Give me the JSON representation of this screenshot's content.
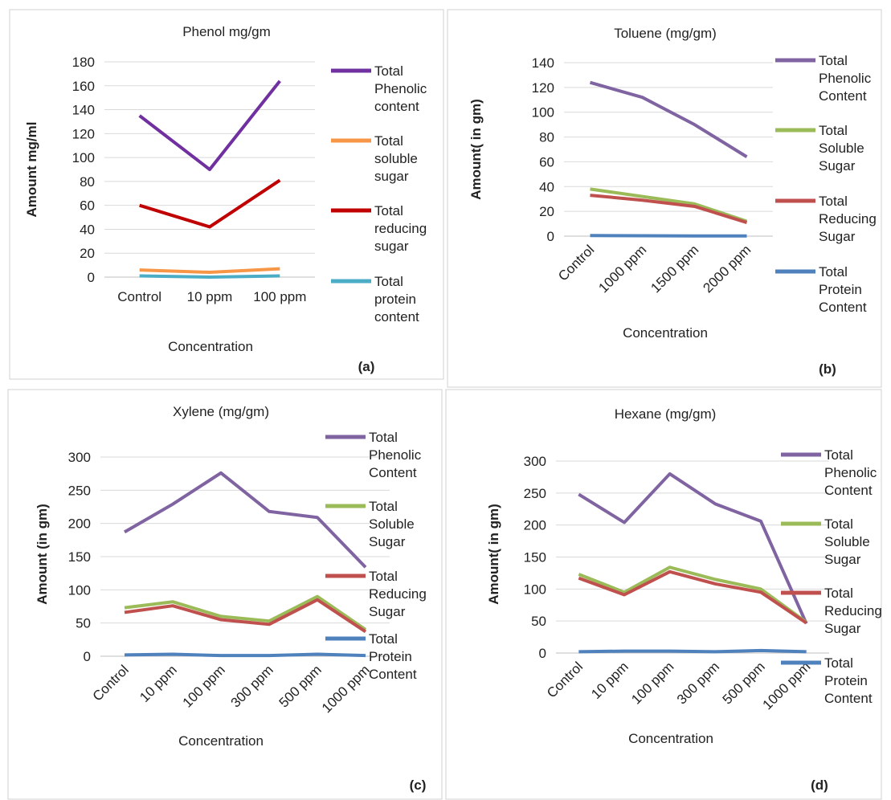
{
  "chart_data": [
    {
      "type": "line",
      "title": "Phenol mg/gm",
      "y_label": "Amount mg/ml",
      "x_label": "Concentration",
      "panel_label": "(a)",
      "categories": [
        "Control",
        "10 ppm",
        "100 ppm"
      ],
      "ylim": [
        0,
        180
      ],
      "yticks": [
        0,
        20,
        40,
        60,
        80,
        100,
        120,
        140,
        160,
        180
      ],
      "grid": true,
      "legend": "right",
      "series": [
        {
          "name": "Total Phenolic content",
          "color": "#7030a0",
          "values": [
            135,
            90,
            164
          ]
        },
        {
          "name": "Total soluble sugar",
          "color": "#f79646",
          "values": [
            6,
            4,
            7
          ]
        },
        {
          "name": "Total reducing sugar",
          "color": "#c00000",
          "values": [
            60,
            42,
            81
          ]
        },
        {
          "name": "Total protein content",
          "color": "#4bacc6",
          "values": [
            1,
            0,
            1
          ]
        }
      ]
    },
    {
      "type": "line",
      "title": "Toluene (mg/gm)",
      "y_label": "Amount( in gm)",
      "x_label": "Concentration",
      "panel_label": "(b)",
      "categories": [
        "Control",
        "1000 ppm",
        "1500 ppm",
        "2000 ppm"
      ],
      "ylim": [
        0,
        140
      ],
      "yticks": [
        0,
        20,
        40,
        60,
        80,
        100,
        120,
        140
      ],
      "grid": true,
      "legend": "right",
      "series": [
        {
          "name": "Total Phenolic Content",
          "color": "#8064a2",
          "values": [
            124,
            112,
            90,
            64
          ]
        },
        {
          "name": "Total Soluble Sugar",
          "color": "#9bbb59",
          "values": [
            38,
            32,
            26,
            12
          ]
        },
        {
          "name": "Total Reducing Sugar",
          "color": "#c0504d",
          "values": [
            33,
            29,
            24,
            11
          ]
        },
        {
          "name": "Total Protein Content",
          "color": "#4f81bd",
          "values": [
            0.5,
            0.3,
            0.2,
            0.2
          ]
        }
      ]
    },
    {
      "type": "line",
      "title": "Xylene (mg/gm)",
      "y_label": "Amount (in gm)",
      "x_label": "Concentration",
      "panel_label": "(c)",
      "categories": [
        "Control",
        "10 ppm",
        "100 ppm",
        "300 ppm",
        "500 ppm",
        "1000 ppm"
      ],
      "ylim": [
        0,
        300
      ],
      "yticks": [
        0,
        50,
        100,
        150,
        200,
        250,
        300
      ],
      "grid": true,
      "legend": "right",
      "series": [
        {
          "name": "Total Phenolic Content",
          "color": "#8064a2",
          "values": [
            187,
            229,
            276,
            218,
            209,
            134
          ]
        },
        {
          "name": "Total Soluble Sugar",
          "color": "#9bbb59",
          "values": [
            73,
            82,
            60,
            53,
            90,
            40
          ]
        },
        {
          "name": "Total Reducing Sugar",
          "color": "#c0504d",
          "values": [
            66,
            76,
            55,
            48,
            85,
            37
          ]
        },
        {
          "name": "Total Protein Content",
          "color": "#4f81bd",
          "values": [
            2,
            3,
            1,
            1,
            3,
            1
          ]
        }
      ]
    },
    {
      "type": "line",
      "title": "Hexane (mg/gm)",
      "y_label": "Amount( in gm)",
      "x_label": "Concentration",
      "panel_label": "(d)",
      "categories": [
        "Control",
        "10 ppm",
        "100 ppm",
        "300 ppm",
        "500 ppm",
        "1000 ppm"
      ],
      "ylim": [
        0,
        300
      ],
      "yticks": [
        0,
        50,
        100,
        150,
        200,
        250,
        300
      ],
      "grid": true,
      "legend": "right",
      "series": [
        {
          "name": "Total Phenolic Content",
          "color": "#8064a2",
          "values": [
            248,
            204,
            280,
            233,
            206,
            46
          ]
        },
        {
          "name": "Total Soluble Sugar",
          "color": "#9bbb59",
          "values": [
            123,
            95,
            134,
            115,
            100,
            48
          ]
        },
        {
          "name": "Total Reducing Sugar",
          "color": "#c0504d",
          "values": [
            117,
            91,
            127,
            108,
            95,
            47
          ]
        },
        {
          "name": "Total Protein Content",
          "color": "#4f81bd",
          "values": [
            2,
            3,
            3,
            2,
            4,
            2
          ]
        }
      ]
    }
  ]
}
